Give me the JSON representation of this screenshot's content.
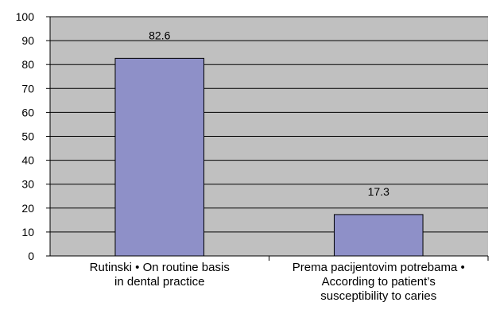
{
  "chart_data": {
    "type": "bar",
    "categories": [
      "Rutinski • On routine basis\nin dental practice",
      "Prema pacijentovim potrebama •\nAccording to patient’s\nsusceptibility to caries"
    ],
    "values": [
      82.6,
      17.3
    ],
    "data_labels": [
      "82.6",
      "17.3"
    ],
    "ylim": [
      0,
      100
    ],
    "yticks": [
      "0",
      "10",
      "20",
      "30",
      "40",
      "50",
      "60",
      "70",
      "80",
      "90",
      "100"
    ],
    "grid": true,
    "colors": {
      "plot_bg": "#c0c0c0",
      "bar": "#8e90c8",
      "bar_edge": "#000000",
      "grid": "#000000"
    }
  }
}
